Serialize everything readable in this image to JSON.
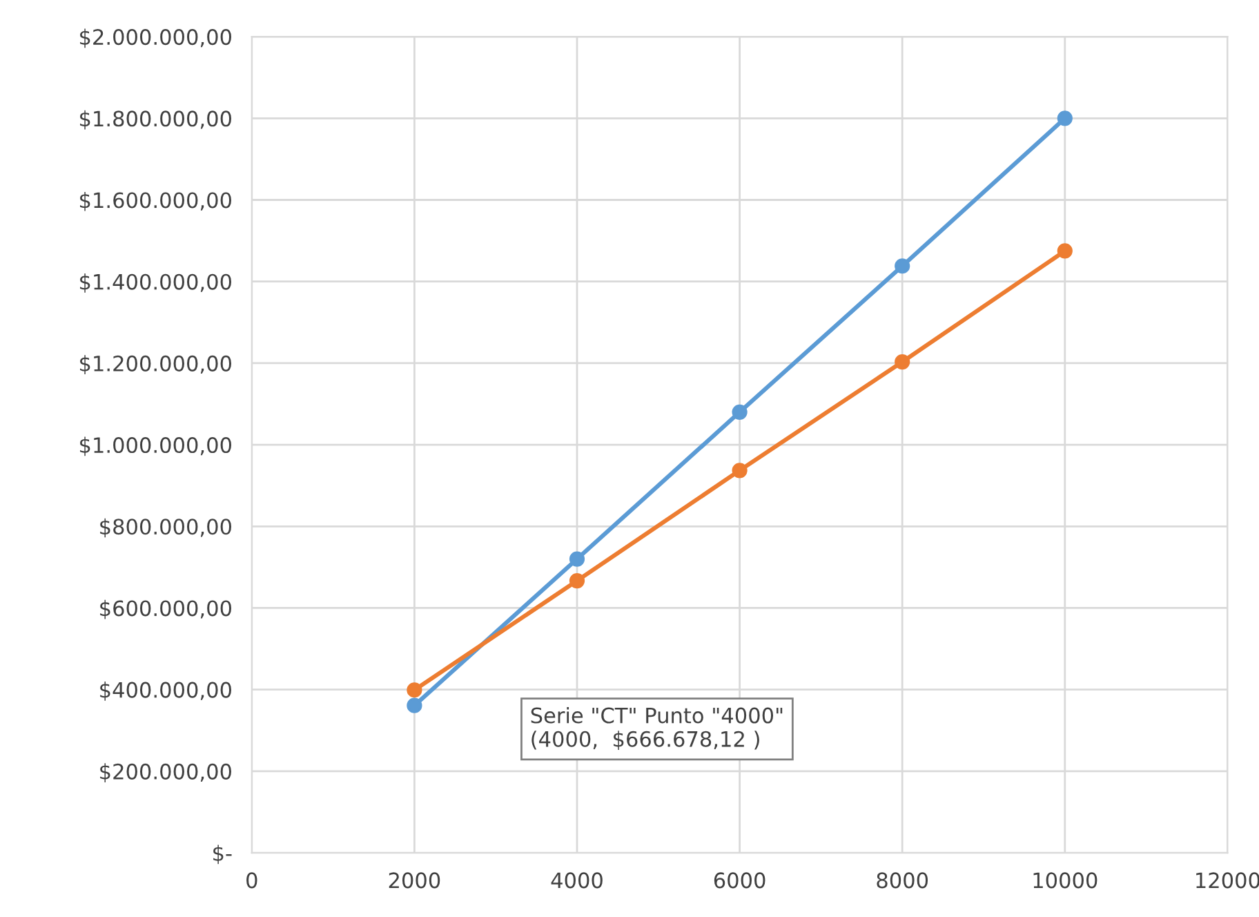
{
  "chart_data": {
    "type": "line",
    "x": [
      2000,
      4000,
      6000,
      8000,
      10000
    ],
    "series": [
      {
        "color": "#5b9bd5",
        "values": [
          361000,
          720000,
          1080000,
          1438000,
          1800000
        ]
      },
      {
        "color": "#ed7d31",
        "values": [
          399000,
          666678.12,
          937000,
          1203000,
          1475000
        ]
      }
    ],
    "xlim": [
      0,
      12000
    ],
    "xticks": [
      0,
      2000,
      4000,
      6000,
      8000,
      10000,
      12000
    ],
    "ylim": [
      0,
      2000000
    ],
    "yticks": [
      {
        "value": 0,
        "label": "$-"
      },
      {
        "value": 200000,
        "label": "$200.000,00"
      },
      {
        "value": 400000,
        "label": "$400.000,00"
      },
      {
        "value": 600000,
        "label": "$600.000,00"
      },
      {
        "value": 800000,
        "label": "$800.000,00"
      },
      {
        "value": 1000000,
        "label": "$1.000.000,00"
      },
      {
        "value": 1200000,
        "label": "$1.200.000,00"
      },
      {
        "value": 1400000,
        "label": "$1.400.000,00"
      },
      {
        "value": 1600000,
        "label": "$1.600.000,00"
      },
      {
        "value": 1800000,
        "label": "$1.800.000,00"
      },
      {
        "value": 2000000,
        "label": "$2.000.000,00"
      }
    ],
    "grid": true,
    "marker": "circle",
    "line_style": "solid",
    "annotations": [
      "Serie \"CT\" Punto \"4000\"\n(4000,  $666.678,12 )"
    ]
  }
}
